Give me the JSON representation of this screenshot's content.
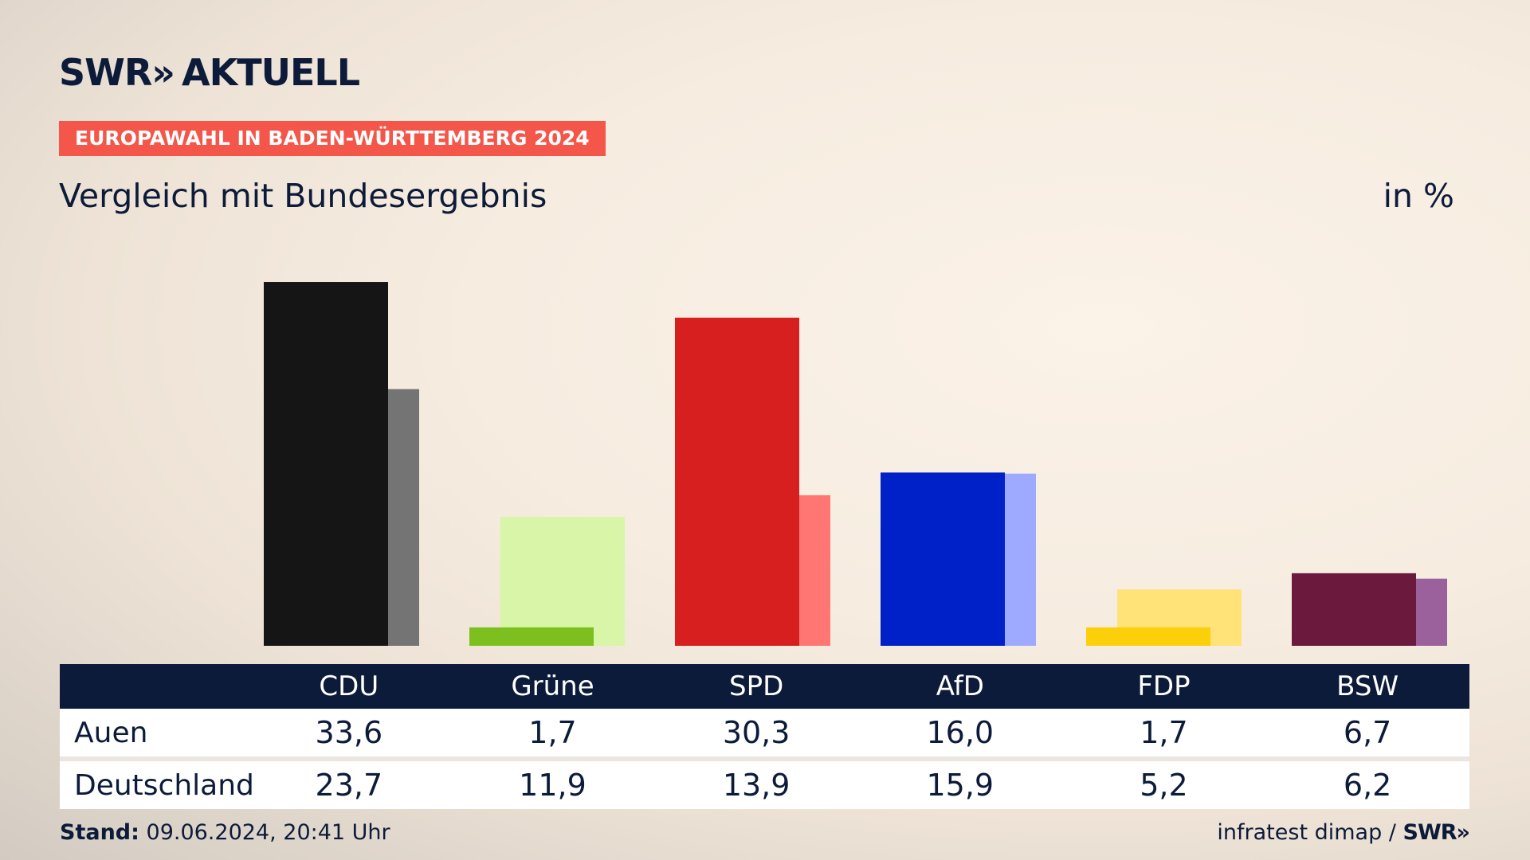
{
  "header": {
    "logo_brand": "SWR",
    "logo_chevrons": "»",
    "logo_product": "AKTUELL",
    "badge": "EUROPAWAHL IN BADEN-WÜRTTEMBERG 2024",
    "subtitle": "Vergleich mit Bundesergebnis",
    "unit": "in %"
  },
  "chart_data": {
    "type": "bar",
    "categories": [
      "CDU",
      "Grüne",
      "SPD",
      "AfD",
      "FDP",
      "BSW"
    ],
    "series": [
      {
        "name": "Auen",
        "values": [
          33.6,
          1.7,
          30.3,
          16.0,
          1.7,
          6.7
        ],
        "labels": [
          "33,6",
          "1,7",
          "30,3",
          "16,0",
          "1,7",
          "6,7"
        ]
      },
      {
        "name": "Deutschland",
        "values": [
          23.7,
          11.9,
          13.9,
          15.9,
          5.2,
          6.2
        ],
        "labels": [
          "23,7",
          "11,9",
          "13,9",
          "15,9",
          "5,2",
          "6,2"
        ]
      }
    ],
    "colors_primary": [
      "#151515",
      "#7cbf1e",
      "#d71f1f",
      "#0021c7",
      "#fccf0b",
      "#6b1a3d"
    ],
    "colors_secondary": [
      "#747474",
      "#d8f5a8",
      "#ff7673",
      "#9eaaff",
      "#ffe278",
      "#9a619c"
    ],
    "ylim": [
      0,
      35
    ],
    "legend": "none",
    "grid": false
  },
  "footer": {
    "stand_label": "Stand:",
    "stand_value": "09.06.2024, 20:41 Uhr",
    "source": "infratest dimap /",
    "source_logo": "SWR»"
  }
}
